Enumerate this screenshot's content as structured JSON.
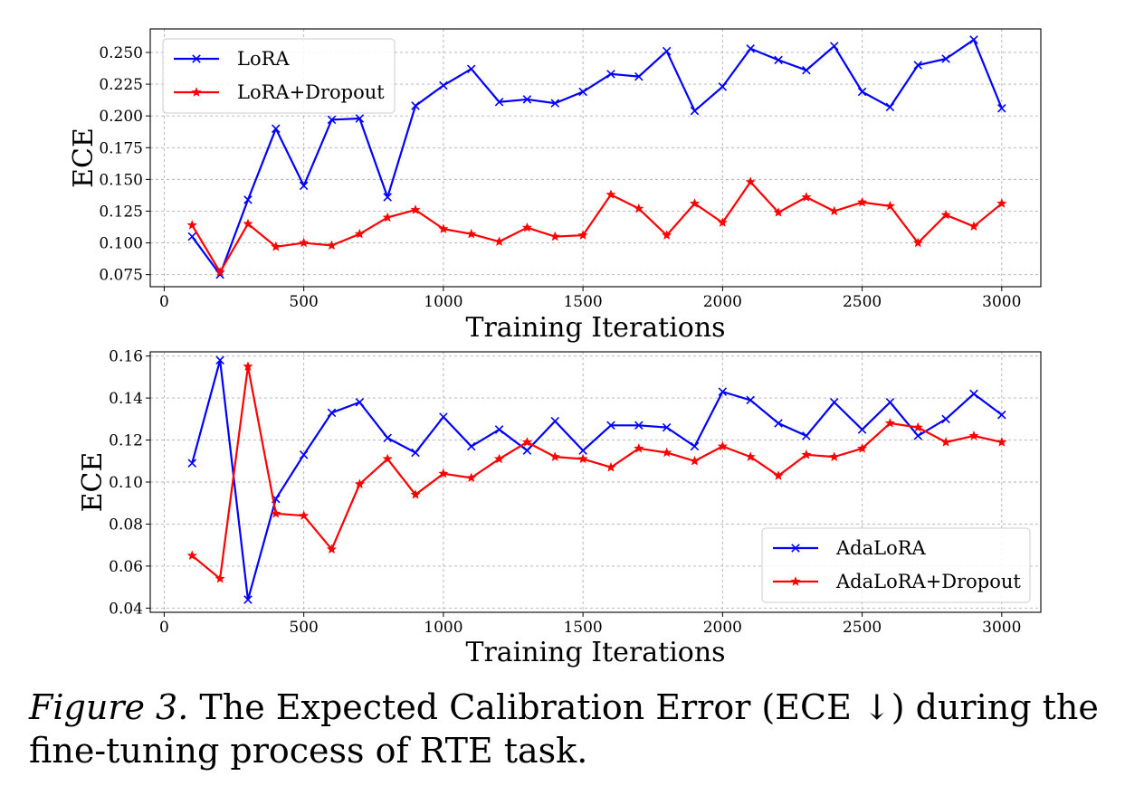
{
  "chart_data": [
    {
      "type": "line",
      "xlabel": "Training Iterations",
      "ylabel": "ECE",
      "xlim": [
        -50,
        3140
      ],
      "ylim": [
        0.0655,
        0.2685
      ],
      "xticks": [
        0,
        500,
        1000,
        1500,
        2000,
        2500,
        3000
      ],
      "yticks": [
        0.075,
        0.1,
        0.125,
        0.15,
        0.175,
        0.2,
        0.225,
        0.25
      ],
      "ytick_labels": [
        "0.075",
        "0.100",
        "0.125",
        "0.150",
        "0.175",
        "0.200",
        "0.225",
        "0.250"
      ],
      "grid": true,
      "legend_position": "upper-left",
      "x": [
        100,
        200,
        300,
        400,
        500,
        600,
        700,
        800,
        900,
        1000,
        1100,
        1200,
        1300,
        1400,
        1500,
        1600,
        1700,
        1800,
        1900,
        2000,
        2100,
        2200,
        2300,
        2400,
        2500,
        2600,
        2700,
        2800,
        2900,
        3000
      ],
      "series": [
        {
          "name": "LoRA",
          "color": "#0000ff",
          "marker": "x",
          "values": [
            0.105,
            0.075,
            0.134,
            0.19,
            0.145,
            0.197,
            0.198,
            0.136,
            0.208,
            0.224,
            0.237,
            0.211,
            0.213,
            0.21,
            0.219,
            0.233,
            0.231,
            0.251,
            0.204,
            0.223,
            0.253,
            0.244,
            0.236,
            0.255,
            0.219,
            0.207,
            0.24,
            0.245,
            0.26,
            0.206
          ]
        },
        {
          "name": "LoRA+Dropout",
          "color": "#ff0000",
          "marker": "star",
          "values": [
            0.114,
            0.077,
            0.115,
            0.097,
            0.1,
            0.098,
            0.107,
            0.12,
            0.126,
            0.111,
            0.107,
            0.101,
            0.112,
            0.105,
            0.106,
            0.138,
            0.127,
            0.106,
            0.131,
            0.116,
            0.148,
            0.124,
            0.136,
            0.125,
            0.132,
            0.129,
            0.1,
            0.122,
            0.113,
            0.131
          ]
        }
      ]
    },
    {
      "type": "line",
      "xlabel": "Training Iterations",
      "ylabel": "ECE",
      "xlim": [
        -50,
        3140
      ],
      "ylim": [
        0.038,
        0.162
      ],
      "xticks": [
        0,
        500,
        1000,
        1500,
        2000,
        2500,
        3000
      ],
      "yticks": [
        0.04,
        0.06,
        0.08,
        0.1,
        0.12,
        0.14,
        0.16
      ],
      "ytick_labels": [
        "0.04",
        "0.06",
        "0.08",
        "0.10",
        "0.12",
        "0.14",
        "0.16"
      ],
      "grid": true,
      "legend_position": "lower-right",
      "x": [
        100,
        200,
        300,
        400,
        500,
        600,
        700,
        800,
        900,
        1000,
        1100,
        1200,
        1300,
        1400,
        1500,
        1600,
        1700,
        1800,
        1900,
        2000,
        2100,
        2200,
        2300,
        2400,
        2500,
        2600,
        2700,
        2800,
        2900,
        3000
      ],
      "series": [
        {
          "name": "AdaLoRA",
          "color": "#0000ff",
          "marker": "x",
          "values": [
            0.109,
            0.158,
            0.044,
            0.092,
            0.113,
            0.133,
            0.138,
            0.121,
            0.114,
            0.131,
            0.117,
            0.125,
            0.115,
            0.129,
            0.115,
            0.127,
            0.127,
            0.126,
            0.117,
            0.143,
            0.139,
            0.128,
            0.122,
            0.138,
            0.125,
            0.138,
            0.122,
            0.13,
            0.142,
            0.132
          ]
        },
        {
          "name": "AdaLoRA+Dropout",
          "color": "#ff0000",
          "marker": "star",
          "values": [
            0.065,
            0.054,
            0.155,
            0.085,
            0.084,
            0.068,
            0.099,
            0.111,
            0.094,
            0.104,
            0.102,
            0.111,
            0.119,
            0.112,
            0.111,
            0.107,
            0.116,
            0.114,
            0.11,
            0.117,
            0.112,
            0.103,
            0.113,
            0.112,
            0.116,
            0.128,
            0.126,
            0.119,
            0.122,
            0.119
          ]
        }
      ]
    }
  ],
  "caption": {
    "label": "Figure 3.",
    "text": " The Expected Calibration Error (ECE ↓) during the fine-tuning process of RTE task."
  }
}
